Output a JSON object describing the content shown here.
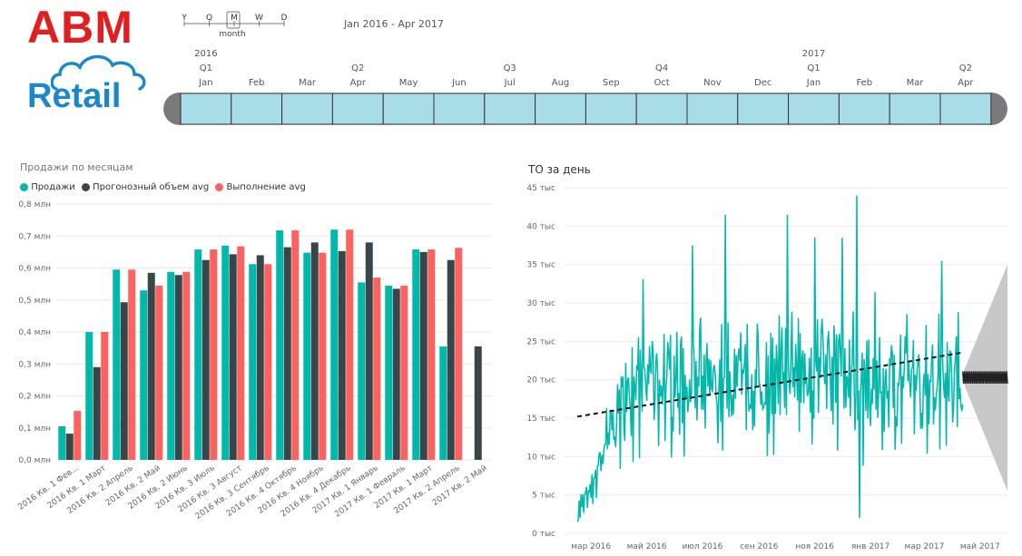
{
  "logo": {
    "top": "ABM",
    "bottom": "Retail"
  },
  "granularity": {
    "items": [
      "Y",
      "Q",
      "M",
      "W",
      "D"
    ],
    "selected": "M",
    "caption": "month"
  },
  "range_label": "Jan 2016 - Apr 2017",
  "timeline": {
    "years": [
      {
        "label": "2016",
        "col": 0
      },
      {
        "label": "2017",
        "col": 12
      }
    ],
    "quarters": [
      {
        "label": "Q1",
        "col": 0
      },
      {
        "label": "Q2",
        "col": 3
      },
      {
        "label": "Q3",
        "col": 6
      },
      {
        "label": "Q4",
        "col": 9
      },
      {
        "label": "Q1",
        "col": 12
      },
      {
        "label": "Q2",
        "col": 15
      }
    ],
    "months": [
      "Jan",
      "Feb",
      "Mar",
      "Apr",
      "May",
      "Jun",
      "Jul",
      "Aug",
      "Sep",
      "Oct",
      "Nov",
      "Dec",
      "Jan",
      "Feb",
      "Mar",
      "Apr"
    ],
    "fill_color": "#a8dce6"
  },
  "chart_data": [
    {
      "type": "bar",
      "title": "Продажи по месяцам",
      "legend": [
        "Продажи",
        "Прогонозный объем avg",
        "Выполнение avg"
      ],
      "colors": [
        "#01b8aa",
        "#374649",
        "#fd625e"
      ],
      "categories": [
        "2016 Кв. 1 Фев...",
        "2016 Кв. 1 Март",
        "2016 Кв. 2 Апрель",
        "2016 Кв. 2 Май",
        "2016 Кв. 2 Июнь",
        "2016 Кв. 3 Июль",
        "2016 Кв. 3 Август",
        "2016 Кв. 3 Сентябрь",
        "2016 Кв. 4 Октябрь",
        "2016 Кв. 4 Ноябрь",
        "2016 Кв. 4 Декабрь",
        "2017 Кв. 1 Январь",
        "2017 Кв. 1 Февраль",
        "2017 Кв. 1 Март",
        "2017 Кв. 2 Апрель",
        "2017 Кв. 2 Май"
      ],
      "series": [
        {
          "name": "Продажи",
          "values": [
            0.105,
            0.4,
            0.595,
            0.53,
            0.588,
            0.658,
            0.67,
            0.612,
            0.718,
            0.648,
            0.72,
            0.555,
            0.545,
            0.658,
            0.355,
            null
          ]
        },
        {
          "name": "Прогонозный объем avg",
          "values": [
            0.082,
            0.29,
            0.493,
            0.585,
            0.578,
            0.625,
            0.643,
            0.64,
            0.665,
            0.68,
            0.653,
            0.68,
            0.535,
            0.65,
            0.625,
            0.355
          ]
        },
        {
          "name": "Выполнение avg",
          "values": [
            0.153,
            0.4,
            0.595,
            0.545,
            0.588,
            0.658,
            0.668,
            0.612,
            0.718,
            0.648,
            0.72,
            0.57,
            0.545,
            0.658,
            0.663,
            null
          ]
        }
      ],
      "yticks": [
        "0,0 млн",
        "0,1 млн",
        "0,2 млн",
        "0,3 млн",
        "0,4 млн",
        "0,5 млн",
        "0,6 млн",
        "0,7 млн",
        "0,8 млн"
      ],
      "ylim": [
        0,
        0.8
      ]
    },
    {
      "type": "line",
      "title": "ТО за день",
      "line_color": "#01b8aa",
      "yticks": [
        "0 тыс",
        "5 тыс",
        "10 тыс",
        "15 тыс",
        "20 тыс",
        "25 тыс",
        "30 тыс",
        "35 тыс",
        "40 тыс",
        "45 тыс"
      ],
      "ylim": [
        0,
        45000
      ],
      "xticks": [
        "мар 2016",
        "май 2016",
        "июл 2016",
        "сен 2016",
        "ноя 2016",
        "янв 2017",
        "мар 2017",
        "май 2017"
      ],
      "x_start": "2016-02-01",
      "x_end": "2017-05-31",
      "xtick_dates": [
        "2016-03-01",
        "2016-05-01",
        "2016-07-01",
        "2016-09-01",
        "2016-11-01",
        "2017-01-01",
        "2017-03-01",
        "2017-05-01"
      ],
      "trend": {
        "from": {
          "date": "2016-02-15",
          "value": 15200
        },
        "to": {
          "date": "2017-04-10",
          "value": 23500
        }
      },
      "forecast": {
        "from_date": "2017-04-12",
        "to_date": "2017-05-31",
        "center": 20300,
        "upper_end": 35000,
        "lower_end": 5500
      },
      "series_control_points": [
        [
          "2016-02-15",
          2500
        ],
        [
          "2016-03-01",
          5000
        ],
        [
          "2016-03-15",
          11000
        ],
        [
          "2016-04-01",
          16000
        ],
        [
          "2016-04-15",
          19000
        ],
        [
          "2016-05-01",
          20000
        ],
        [
          "2016-06-01",
          19500
        ],
        [
          "2016-07-01",
          18500
        ],
        [
          "2016-08-01",
          19000
        ],
        [
          "2016-09-01",
          19000
        ],
        [
          "2016-10-01",
          21000
        ],
        [
          "2016-11-01",
          21000
        ],
        [
          "2016-12-01",
          21000
        ],
        [
          "2016-12-15",
          19000
        ],
        [
          "2017-01-01",
          18000
        ],
        [
          "2017-02-01",
          20000
        ],
        [
          "2017-03-01",
          20000
        ],
        [
          "2017-04-10",
          20000
        ]
      ],
      "series_peaks": [
        [
          "2016-06-20",
          37500
        ],
        [
          "2016-07-26",
          41500
        ],
        [
          "2016-10-02",
          41500
        ],
        [
          "2016-11-01",
          38500
        ],
        [
          "2016-12-01",
          38500
        ],
        [
          "2016-12-17",
          44000
        ],
        [
          "2017-03-20",
          35500
        ]
      ],
      "series_dips": [
        [
          "2016-12-20",
          2000
        ],
        [
          "2017-04-14",
          10500
        ]
      ]
    }
  ]
}
